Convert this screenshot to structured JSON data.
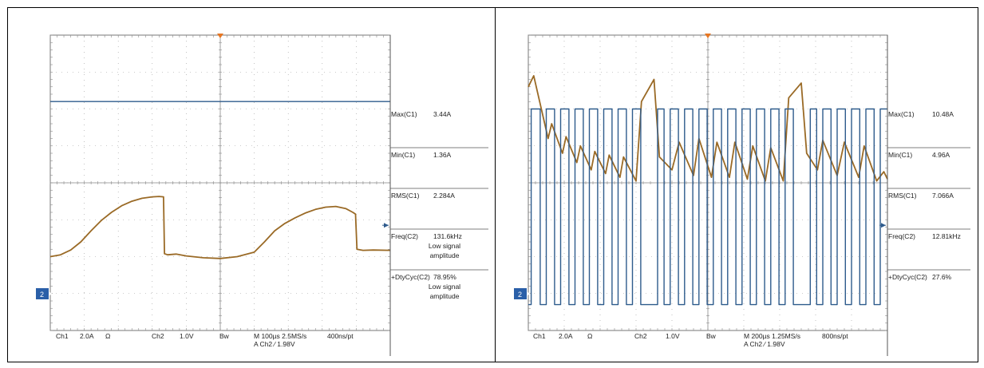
{
  "chart_data": [
    {
      "type": "line",
      "xlim": [
        0,
        10
      ],
      "ylim": [
        -4,
        4
      ],
      "ch2_marker_label": "2",
      "colors": {
        "ch1": "#9a6a26",
        "ch2": "#2e5b8c",
        "grid": "#9a9a9a"
      },
      "series": [
        {
          "x": [
            0,
            0.3,
            0.6,
            0.9,
            1.2,
            1.5,
            1.8,
            2.1,
            2.4,
            2.7,
            3.0,
            3.2,
            3.33,
            3.36,
            3.45,
            3.7,
            4.0,
            4.5,
            5.0,
            5.5,
            6.0,
            6.3,
            6.6,
            6.9,
            7.2,
            7.5,
            7.8,
            8.1,
            8.4,
            8.7,
            8.9,
            8.98,
            9.02,
            9.2,
            9.5,
            10
          ],
          "y": [
            -2.0,
            -1.95,
            -1.82,
            -1.6,
            -1.3,
            -1.02,
            -0.8,
            -0.62,
            -0.5,
            -0.42,
            -0.38,
            -0.37,
            -0.38,
            -1.92,
            -1.95,
            -1.93,
            -1.98,
            -2.03,
            -2.05,
            -2.0,
            -1.88,
            -1.6,
            -1.3,
            -1.1,
            -0.95,
            -0.82,
            -0.72,
            -0.66,
            -0.64,
            -0.7,
            -0.8,
            -0.85,
            -1.8,
            -1.83,
            -1.82,
            -1.83
          ]
        },
        {
          "x": [
            0,
            10
          ],
          "y": [
            2.2,
            2.2
          ]
        }
      ],
      "measurements": [
        {
          "label": "Max(C1)",
          "value": "3.44A"
        },
        {
          "label": "Min(C1)",
          "value": "1.36A"
        },
        {
          "label": "RMS(C1)",
          "value": "2.284A"
        },
        {
          "label": "Freq(C2)",
          "value": "131.6kHz",
          "note": "Low signal amplitude"
        },
        {
          "label": "+DtyCyc(C2)",
          "value": "78.95%",
          "note": "Low signal amplitude"
        }
      ],
      "status_line1": [
        "Ch1",
        "2.0A",
        "Ω",
        "Ch2",
        "1.0V",
        "Bw",
        "M 100µs 2.5MS/s",
        "400ns/pt"
      ],
      "status_line2": "A  Ch2  ∕  1.98V"
    },
    {
      "type": "line",
      "xlim": [
        0,
        10
      ],
      "ylim": [
        -4,
        4
      ],
      "ch2_marker_label": "2",
      "colors": {
        "ch1": "#9a6a26",
        "ch2": "#2e5b8c",
        "grid": "#9a9a9a"
      },
      "series": [
        {
          "x": [
            0.0,
            0.15,
            0.55,
            0.65,
            0.95,
            1.05,
            1.35,
            1.45,
            1.75,
            1.85,
            2.15,
            2.25,
            2.55,
            2.65,
            3.0,
            3.15,
            3.5,
            3.65,
            4.0,
            4.2,
            4.6,
            4.75,
            5.1,
            5.25,
            5.6,
            5.75,
            6.1,
            6.25,
            6.6,
            6.75,
            7.1,
            7.25,
            7.6,
            7.75,
            8.05,
            8.2,
            8.6,
            8.8,
            9.2,
            9.35,
            9.7,
            9.9,
            10.0
          ],
          "y": [
            2.6,
            2.9,
            1.2,
            1.6,
            0.8,
            1.25,
            0.55,
            1.0,
            0.35,
            0.85,
            0.25,
            0.75,
            0.15,
            0.7,
            0.05,
            2.2,
            2.8,
            0.7,
            0.35,
            1.1,
            0.2,
            1.2,
            0.15,
            1.1,
            0.15,
            1.1,
            0.1,
            1.0,
            0.05,
            0.95,
            0.05,
            2.3,
            2.7,
            0.8,
            0.35,
            1.15,
            0.2,
            1.1,
            0.15,
            1.0,
            0.05,
            0.3,
            0.1
          ]
        },
        {
          "x": [
            0,
            0.08,
            0.08,
            0.33,
            0.33,
            0.5,
            0.5,
            0.73,
            0.73,
            0.9,
            0.9,
            1.13,
            1.13,
            1.3,
            1.3,
            1.53,
            1.53,
            1.7,
            1.7,
            1.93,
            1.93,
            2.1,
            2.1,
            2.33,
            2.33,
            2.5,
            2.5,
            2.73,
            2.73,
            2.9,
            2.9,
            3.13,
            3.13,
            3.6,
            3.6,
            3.78,
            3.78,
            3.95,
            3.95,
            4.18,
            4.18,
            4.35,
            4.35,
            4.58,
            4.58,
            4.75,
            4.75,
            4.98,
            4.98,
            5.15,
            5.15,
            5.38,
            5.38,
            5.55,
            5.55,
            5.78,
            5.78,
            5.95,
            5.95,
            6.18,
            6.18,
            6.35,
            6.35,
            6.58,
            6.58,
            6.75,
            6.75,
            6.98,
            6.98,
            7.15,
            7.15,
            7.38,
            7.38,
            7.85,
            7.85,
            8.03,
            8.03,
            8.2,
            8.2,
            8.43,
            8.43,
            8.6,
            8.6,
            8.83,
            8.83,
            9.0,
            9.0,
            9.23,
            9.23,
            9.4,
            9.4,
            9.63,
            9.63,
            9.8,
            9.8,
            10
          ],
          "y": [
            -3.3,
            -3.3,
            2.0,
            2.0,
            -3.3,
            -3.3,
            2.0,
            2.0,
            -3.3,
            -3.3,
            2.0,
            2.0,
            -3.3,
            -3.3,
            2.0,
            2.0,
            -3.3,
            -3.3,
            2.0,
            2.0,
            -3.3,
            -3.3,
            2.0,
            2.0,
            -3.3,
            -3.3,
            2.0,
            2.0,
            -3.3,
            -3.3,
            2.0,
            2.0,
            -3.3,
            -3.3,
            2.0,
            2.0,
            -3.3,
            -3.3,
            2.0,
            2.0,
            -3.3,
            -3.3,
            2.0,
            2.0,
            -3.3,
            -3.3,
            2.0,
            2.0,
            -3.3,
            -3.3,
            2.0,
            2.0,
            -3.3,
            -3.3,
            2.0,
            2.0,
            -3.3,
            -3.3,
            2.0,
            2.0,
            -3.3,
            -3.3,
            2.0,
            2.0,
            -3.3,
            -3.3,
            2.0,
            2.0,
            -3.3,
            -3.3,
            2.0,
            2.0,
            -3.3,
            -3.3,
            2.0,
            2.0,
            -3.3,
            -3.3,
            2.0,
            2.0,
            -3.3,
            -3.3,
            2.0,
            2.0,
            -3.3,
            -3.3,
            2.0,
            2.0,
            -3.3,
            -3.3,
            2.0,
            2.0,
            -3.3,
            -3.3,
            2.0,
            2.0
          ]
        }
      ],
      "measurements": [
        {
          "label": "Max(C1)",
          "value": "10.48A"
        },
        {
          "label": "Min(C1)",
          "value": "4.96A"
        },
        {
          "label": "RMS(C1)",
          "value": "7.066A"
        },
        {
          "label": "Freq(C2)",
          "value": "12.81kHz"
        },
        {
          "label": "+DtyCyc(C2)",
          "value": "27.6%"
        }
      ],
      "status_line1": [
        "Ch1",
        "2.0A",
        "Ω",
        "Ch2",
        "1.0V",
        "Bw",
        "M 200µs 1.25MS/s",
        "800ns/pt"
      ],
      "status_line2": "A  Ch2  ∕  1.98V"
    }
  ]
}
